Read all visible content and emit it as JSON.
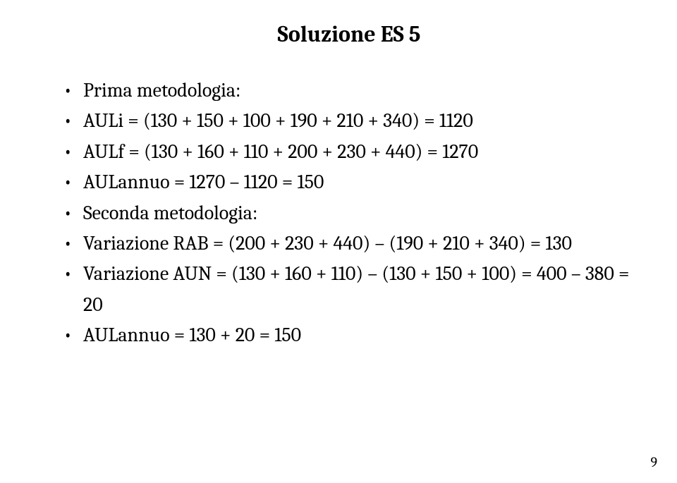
{
  "title": "Soluzione ES 5",
  "bullets": [
    "Prima metodologia:",
    "AULi = (130 + 150 + 100 + 190 + 210 + 340) = 1120",
    "AULf = (130 + 160 + 110 + 200 + 230 + 440) = 1270",
    "AULannuo = 1270 – 1120 = 150",
    "Seconda metodologia:",
    "Variazione RAB = (200 + 230 + 440) – (190 + 210 + 340) = 130",
    "Variazione AUN = (130 + 160 + 110) – (130 + 150 + 100) = 400 – 380 = 20",
    "AULannuo = 130 + 20 = 150"
  ],
  "page_number": "9"
}
